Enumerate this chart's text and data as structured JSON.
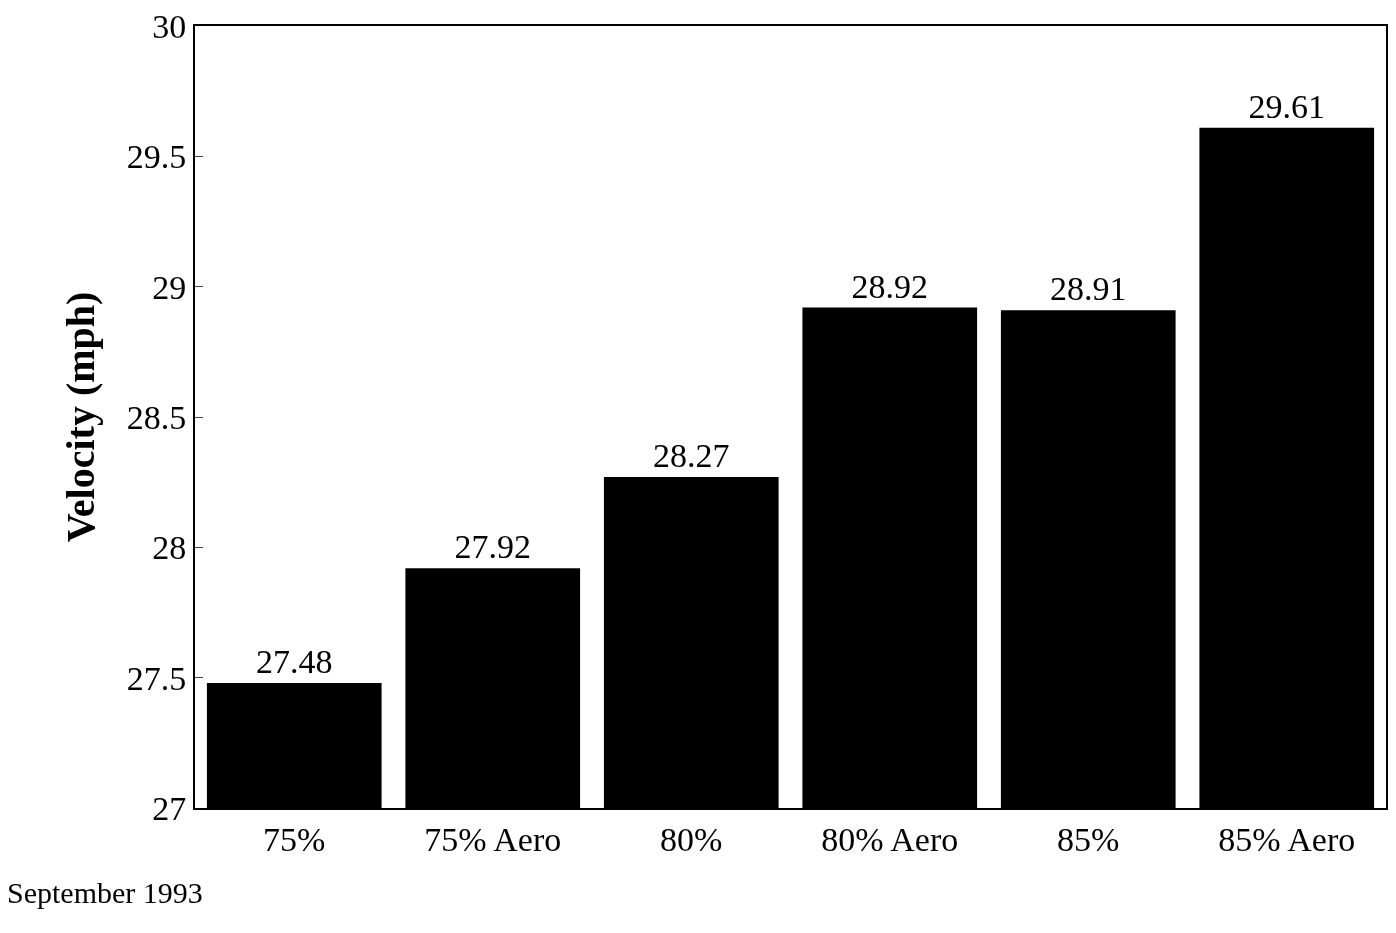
{
  "chart_data": {
    "type": "bar",
    "ylabel": "Velocity (mph)",
    "categories": [
      "75%",
      "75% Aero",
      "80%",
      "80% Aero",
      "85%",
      "85% Aero"
    ],
    "values": [
      27.48,
      27.92,
      28.27,
      28.92,
      28.91,
      29.61
    ],
    "color": "#000000",
    "data_labels": true,
    "ylim": [
      27,
      30
    ],
    "yticks": [
      27,
      27.5,
      28,
      28.5,
      29,
      29.5,
      30
    ],
    "legend": false,
    "annotations": [
      "September 1993"
    ]
  }
}
